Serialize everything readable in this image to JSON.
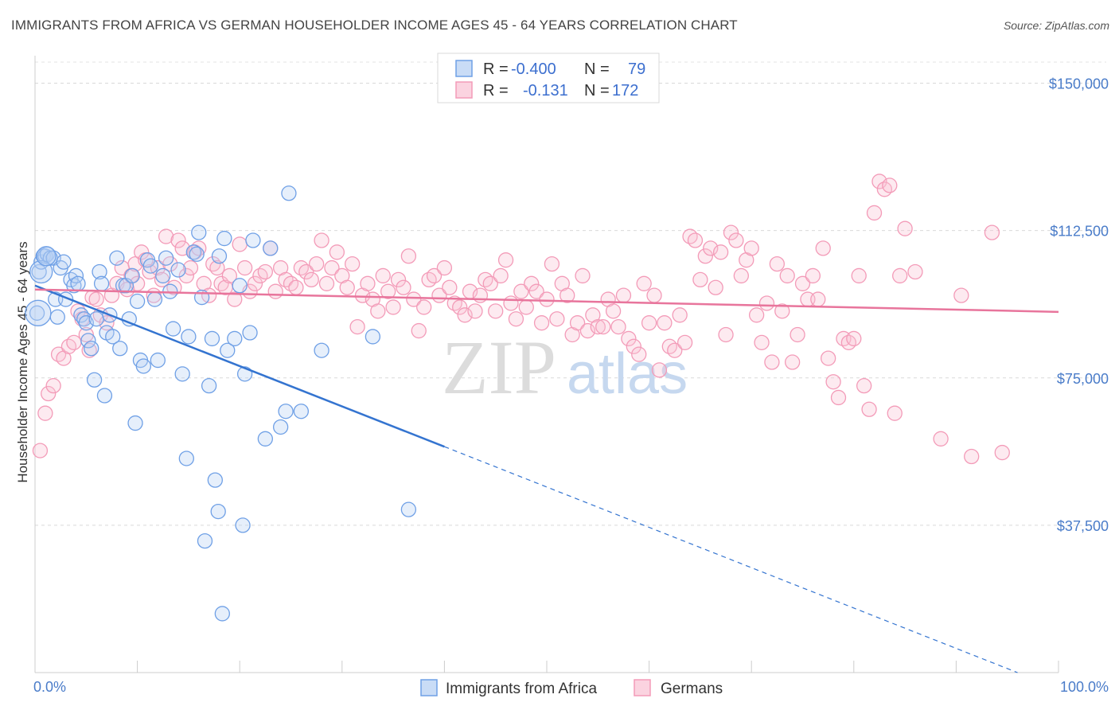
{
  "title": "IMMIGRANTS FROM AFRICA VS GERMAN HOUSEHOLDER INCOME AGES 45 - 64 YEARS CORRELATION CHART",
  "source": "Source: ZipAtlas.com",
  "watermark": {
    "zip": "ZIP",
    "atlas": "atlas"
  },
  "legend_top": {
    "rows": [
      {
        "r_label": "R =",
        "r_value": "-0.400",
        "n_label": "N =",
        "n_value": "79",
        "color": "#6fa0e6"
      },
      {
        "r_label": "R =",
        "r_value": "-0.131",
        "n_label": "N =",
        "n_value": "172",
        "color": "#f39bb8"
      }
    ]
  },
  "chart_data": {
    "type": "scatter",
    "title": "IMMIGRANTS FROM AFRICA VS GERMAN HOUSEHOLDER INCOME AGES 45 - 64 YEARS CORRELATION CHART",
    "xlabel": "",
    "ylabel": "Householder Income Ages 45 - 64 years",
    "xlim": [
      0,
      100
    ],
    "ylim": [
      0,
      157000
    ],
    "x_tick_labels": [
      "0.0%",
      "100.0%"
    ],
    "y_ticks": [
      37500,
      75000,
      112500,
      150000
    ],
    "y_tick_labels": [
      "$37,500",
      "$75,000",
      "$112,500",
      "$150,000"
    ],
    "grid": true,
    "legend_position": "bottom",
    "series": [
      {
        "name": "Immigrants from Africa",
        "color": "#6fa0e6",
        "line_color": "#3474d0",
        "trend": {
          "x0": 0,
          "y0": 98500,
          "x1": 40,
          "y1": 57500,
          "x_end": 96,
          "y_end": 0
        },
        "points": [
          [
            0.2,
            91.5
          ],
          [
            0.4,
            102
          ],
          [
            0.6,
            104.5
          ],
          [
            0.8,
            106
          ],
          [
            1,
            106
          ],
          [
            1.2,
            106.5
          ],
          [
            1.5,
            105.5
          ],
          [
            1.8,
            105.5
          ],
          [
            2,
            95
          ],
          [
            2.2,
            90.5
          ],
          [
            2.5,
            103
          ],
          [
            2.8,
            104.5
          ],
          [
            3,
            95
          ],
          [
            3.5,
            100
          ],
          [
            3.8,
            98.5
          ],
          [
            4,
            101
          ],
          [
            4.2,
            99
          ],
          [
            4.5,
            91
          ],
          [
            4.8,
            90
          ],
          [
            5,
            89
          ],
          [
            5.2,
            84.5
          ],
          [
            5.5,
            82.5
          ],
          [
            5.8,
            74.5
          ],
          [
            6,
            90
          ],
          [
            6.3,
            102
          ],
          [
            6.5,
            99
          ],
          [
            6.8,
            70.5
          ],
          [
            7,
            86.5
          ],
          [
            7.3,
            91
          ],
          [
            7.6,
            85.5
          ],
          [
            8,
            105.5
          ],
          [
            8.3,
            82.5
          ],
          [
            8.6,
            98.5
          ],
          [
            8.9,
            98.5
          ],
          [
            9.2,
            90
          ],
          [
            9.5,
            101
          ],
          [
            9.8,
            63.5
          ],
          [
            10,
            94.5
          ],
          [
            10.3,
            79.5
          ],
          [
            10.6,
            78
          ],
          [
            11,
            105
          ],
          [
            11.3,
            103.5
          ],
          [
            11.7,
            95
          ],
          [
            12,
            79.5
          ],
          [
            12.5,
            101
          ],
          [
            12.8,
            105.5
          ],
          [
            13.2,
            97
          ],
          [
            13.5,
            87.5
          ],
          [
            14,
            102.5
          ],
          [
            14.4,
            76
          ],
          [
            14.8,
            54.5
          ],
          [
            15,
            85.5
          ],
          [
            15.5,
            107
          ],
          [
            15.8,
            106.5
          ],
          [
            16,
            112
          ],
          [
            16.3,
            95.5
          ],
          [
            16.6,
            33.5
          ],
          [
            17,
            73
          ],
          [
            17.3,
            85
          ],
          [
            17.6,
            49
          ],
          [
            17.9,
            41
          ],
          [
            18,
            106
          ],
          [
            18.3,
            15
          ],
          [
            18.5,
            110.5
          ],
          [
            18.8,
            82
          ],
          [
            19.5,
            85
          ],
          [
            20,
            98.5
          ],
          [
            20.3,
            37.5
          ],
          [
            20.5,
            76
          ],
          [
            21,
            86.5
          ],
          [
            21.3,
            110
          ],
          [
            22.5,
            59.5
          ],
          [
            23,
            108
          ],
          [
            24,
            62.5
          ],
          [
            24.5,
            66.5
          ],
          [
            24.8,
            122
          ],
          [
            26,
            66.5
          ],
          [
            28,
            82
          ],
          [
            33,
            85.5
          ],
          [
            36.5,
            41.5
          ]
        ]
      },
      {
        "name": "Germans",
        "color": "#f39bb8",
        "line_color": "#e8759c",
        "trend": {
          "x0": 0,
          "y0": 97500,
          "x1": 100,
          "y1": 91800
        },
        "points": [
          [
            0.5,
            56.5
          ],
          [
            1,
            66
          ],
          [
            1.3,
            71
          ],
          [
            1.8,
            73
          ],
          [
            2.3,
            81
          ],
          [
            2.8,
            80
          ],
          [
            3.3,
            83
          ],
          [
            3.8,
            84
          ],
          [
            4.2,
            92
          ],
          [
            4.6,
            90
          ],
          [
            5,
            86
          ],
          [
            5.3,
            82
          ],
          [
            5.6,
            95.5
          ],
          [
            6,
            95
          ],
          [
            6.4,
            91
          ],
          [
            7,
            89
          ],
          [
            7.5,
            96
          ],
          [
            8,
            99
          ],
          [
            8.5,
            103
          ],
          [
            9,
            97.5
          ],
          [
            9.4,
            101
          ],
          [
            9.8,
            104
          ],
          [
            10,
            99
          ],
          [
            10.4,
            107
          ],
          [
            10.8,
            105
          ],
          [
            11.2,
            102
          ],
          [
            11.6,
            96
          ],
          [
            12,
            103
          ],
          [
            12.4,
            100
          ],
          [
            12.8,
            111
          ],
          [
            13.2,
            104
          ],
          [
            13.6,
            98
          ],
          [
            14,
            110
          ],
          [
            14.4,
            108
          ],
          [
            14.8,
            101
          ],
          [
            15.2,
            103
          ],
          [
            15.6,
            107
          ],
          [
            16,
            108
          ],
          [
            16.5,
            99
          ],
          [
            17,
            96
          ],
          [
            17.4,
            104
          ],
          [
            17.8,
            103
          ],
          [
            18.2,
            99
          ],
          [
            18.6,
            98
          ],
          [
            19,
            101
          ],
          [
            19.5,
            95
          ],
          [
            20,
            109
          ],
          [
            20.5,
            103
          ],
          [
            21,
            97
          ],
          [
            21.5,
            99
          ],
          [
            22,
            101
          ],
          [
            22.5,
            102
          ],
          [
            23,
            108
          ],
          [
            23.5,
            97
          ],
          [
            24,
            103
          ],
          [
            24.5,
            100
          ],
          [
            25,
            99
          ],
          [
            25.5,
            98
          ],
          [
            26,
            103
          ],
          [
            26.5,
            102
          ],
          [
            27,
            100
          ],
          [
            27.5,
            104
          ],
          [
            28,
            110
          ],
          [
            28.5,
            99
          ],
          [
            29,
            103
          ],
          [
            29.5,
            107
          ],
          [
            30,
            101
          ],
          [
            30.5,
            98
          ],
          [
            31,
            104
          ],
          [
            31.5,
            88
          ],
          [
            32,
            96
          ],
          [
            32.5,
            99
          ],
          [
            33,
            95
          ],
          [
            33.5,
            92
          ],
          [
            34,
            101
          ],
          [
            34.5,
            97
          ],
          [
            35,
            93
          ],
          [
            35.5,
            100
          ],
          [
            36,
            98
          ],
          [
            36.5,
            106
          ],
          [
            37,
            95
          ],
          [
            37.5,
            87
          ],
          [
            38,
            93
          ],
          [
            38.5,
            100
          ],
          [
            39,
            101
          ],
          [
            39.5,
            96
          ],
          [
            40,
            103
          ],
          [
            40.5,
            98
          ],
          [
            41,
            94
          ],
          [
            41.5,
            93
          ],
          [
            42,
            91
          ],
          [
            42.5,
            97
          ],
          [
            43,
            92
          ],
          [
            43.5,
            96
          ],
          [
            44,
            100
          ],
          [
            44.5,
            99
          ],
          [
            45,
            92
          ],
          [
            45.5,
            101
          ],
          [
            46,
            105
          ],
          [
            46.5,
            94
          ],
          [
            47,
            90
          ],
          [
            47.5,
            97
          ],
          [
            48,
            93
          ],
          [
            48.5,
            99
          ],
          [
            49,
            97
          ],
          [
            49.5,
            89
          ],
          [
            50,
            95
          ],
          [
            50.5,
            104
          ],
          [
            51,
            90
          ],
          [
            51.5,
            99
          ],
          [
            52,
            96
          ],
          [
            52.5,
            86
          ],
          [
            53,
            89
          ],
          [
            53.5,
            101
          ],
          [
            54,
            87
          ],
          [
            54.5,
            91
          ],
          [
            55,
            88
          ],
          [
            55.5,
            88
          ],
          [
            56,
            95
          ],
          [
            56.5,
            92
          ],
          [
            57,
            88
          ],
          [
            57.5,
            96
          ],
          [
            58,
            85
          ],
          [
            58.5,
            83
          ],
          [
            59,
            81
          ],
          [
            59.5,
            99
          ],
          [
            60,
            89
          ],
          [
            60.5,
            96
          ],
          [
            61,
            77
          ],
          [
            61.5,
            89
          ],
          [
            62,
            83
          ],
          [
            62.5,
            82
          ],
          [
            63,
            91
          ],
          [
            63.5,
            84
          ],
          [
            64,
            111
          ],
          [
            64.5,
            110
          ],
          [
            65,
            100
          ],
          [
            65.5,
            106
          ],
          [
            66,
            108
          ],
          [
            66.5,
            98
          ],
          [
            67,
            107
          ],
          [
            67.5,
            86
          ],
          [
            68,
            112
          ],
          [
            68.5,
            110
          ],
          [
            69,
            101
          ],
          [
            69.5,
            105
          ],
          [
            70,
            108
          ],
          [
            70.5,
            91
          ],
          [
            71,
            84
          ],
          [
            71.5,
            94
          ],
          [
            72,
            79
          ],
          [
            72.5,
            104
          ],
          [
            73,
            92
          ],
          [
            73.5,
            101
          ],
          [
            74,
            79
          ],
          [
            74.5,
            86
          ],
          [
            75,
            99
          ],
          [
            75.5,
            95
          ],
          [
            76,
            101
          ],
          [
            76.5,
            95
          ],
          [
            77,
            108
          ],
          [
            77.5,
            80
          ],
          [
            78,
            74
          ],
          [
            78.5,
            70
          ],
          [
            79,
            85
          ],
          [
            79.5,
            84
          ],
          [
            80,
            85
          ],
          [
            80.5,
            101
          ],
          [
            81,
            73
          ],
          [
            81.5,
            67
          ],
          [
            82,
            117
          ],
          [
            82.5,
            125
          ],
          [
            83,
            123
          ],
          [
            83.5,
            124
          ],
          [
            84,
            66
          ],
          [
            84.5,
            101
          ],
          [
            85,
            113
          ],
          [
            86,
            102
          ],
          [
            88.5,
            59.5
          ],
          [
            90.5,
            96
          ],
          [
            91.5,
            55
          ],
          [
            93.5,
            112
          ],
          [
            94.5,
            56
          ]
        ]
      }
    ]
  }
}
